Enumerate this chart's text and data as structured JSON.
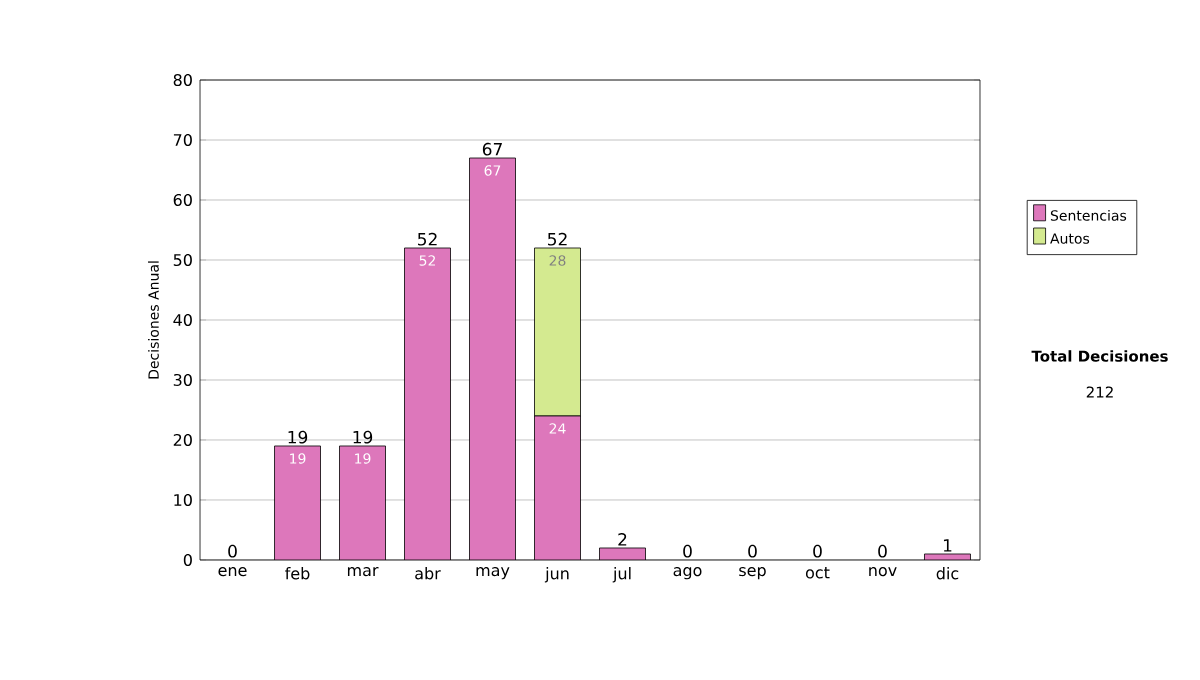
{
  "chart_data": {
    "type": "bar",
    "stacked": true,
    "ylabel": "Decisiones Anual",
    "categories": [
      "ene",
      "feb",
      "mar",
      "abr",
      "may",
      "jun",
      "jul",
      "ago",
      "sep",
      "oct",
      "nov",
      "dic"
    ],
    "series": [
      {
        "name": "Sentencias",
        "color": "#dd77bb",
        "values": [
          0,
          19,
          19,
          52,
          67,
          24,
          2,
          0,
          0,
          0,
          0,
          1
        ],
        "value_labels": [
          null,
          "19",
          "19",
          "52",
          "67",
          "24",
          null,
          null,
          null,
          null,
          null,
          null
        ]
      },
      {
        "name": "Autos",
        "color": "#d4ea90",
        "values": [
          0,
          0,
          0,
          0,
          0,
          28,
          0,
          0,
          0,
          0,
          0,
          0
        ],
        "value_labels": [
          null,
          null,
          null,
          null,
          null,
          "28",
          null,
          null,
          null,
          null,
          null,
          null
        ]
      }
    ],
    "totals": [
      "0",
      "19",
      "19",
      "52",
      "67",
      "52",
      "2",
      "0",
      "0",
      "0",
      "0",
      "1"
    ],
    "ylim": [
      0,
      80
    ],
    "yticks": [
      0,
      10,
      20,
      30,
      40,
      50,
      60,
      70,
      80
    ],
    "grid": "y",
    "legend": "right",
    "annotations": [
      "Total Decisiones",
      "212"
    ]
  }
}
